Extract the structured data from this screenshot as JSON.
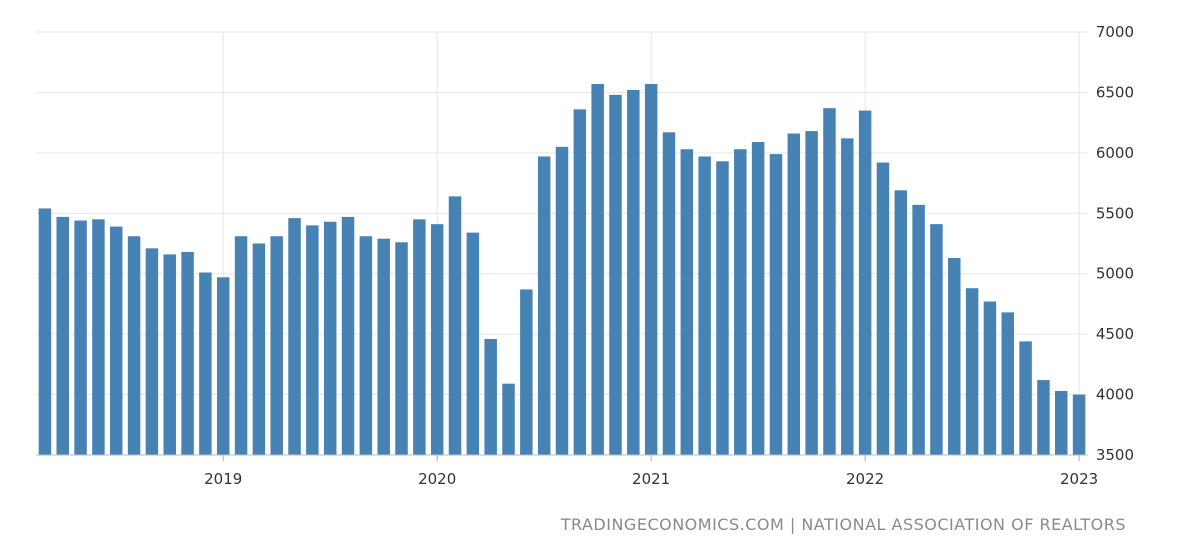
{
  "chart_data": {
    "type": "bar",
    "title": "",
    "xlabel": "",
    "ylabel": "",
    "ylim": [
      3500,
      7000
    ],
    "yticks": [
      3500,
      4000,
      4500,
      5000,
      5500,
      6000,
      6500,
      7000
    ],
    "y_axis_side": "right",
    "grid": true,
    "legend": "none",
    "bar_color": "#4682b4",
    "x_tick_labels": [
      {
        "label": "2019",
        "index": 10.5
      },
      {
        "label": "2020",
        "index": 22.5
      },
      {
        "label": "2021",
        "index": 34.5
      },
      {
        "label": "2022",
        "index": 46.5
      },
      {
        "label": "2023",
        "index": 58.5
      }
    ],
    "series": [
      {
        "values": [
          5540,
          5470,
          5440,
          5450,
          5390,
          5310,
          5210,
          5160,
          5180,
          5010,
          4970,
          5310,
          5250,
          5310,
          5460,
          5400,
          5430,
          5470,
          5310,
          5290,
          5260,
          5450,
          5410,
          5640,
          5340,
          4460,
          4090,
          4870,
          5970,
          6050,
          6360,
          6570,
          6480,
          6520,
          6570,
          6170,
          6030,
          5970,
          5930,
          6030,
          6090,
          5990,
          6160,
          6180,
          6370,
          6120,
          6350,
          5920,
          5690,
          5570,
          5410,
          5130,
          4880,
          4770,
          4680,
          4440,
          4120,
          4030,
          4000
        ]
      }
    ]
  },
  "source_text": "TRADINGECONOMICS.COM | NATIONAL ASSOCIATION OF REALTORS"
}
